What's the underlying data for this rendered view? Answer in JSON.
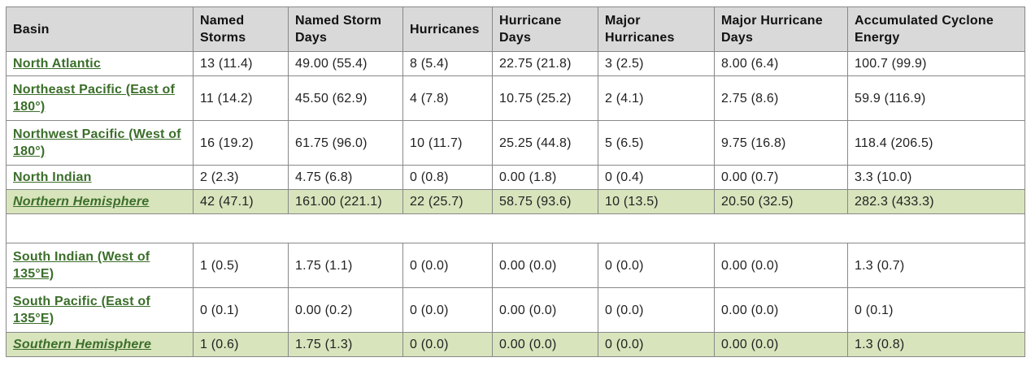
{
  "headers": [
    "Basin",
    "Named Storms",
    "Named Storm Days",
    "Hurricanes",
    "Hurricane Days",
    "Major Hurricanes",
    "Major Hurricane Days",
    "Accumulated Cyclone Energy"
  ],
  "rows": [
    {
      "basin": "North Atlantic",
      "cells": [
        "13 (11.4)",
        "49.00 (55.4)",
        "8 (5.4)",
        "22.75 (21.8)",
        "3 (2.5)",
        "8.00 (6.4)",
        "100.7 (99.9)"
      ]
    },
    {
      "basin": "Northeast Pacific (East of 180°)",
      "cells": [
        "11 (14.2)",
        "45.50 (62.9)",
        "4 (7.8)",
        "10.75 (25.2)",
        "2 (4.1)",
        "2.75 (8.6)",
        "59.9 (116.9)"
      ]
    },
    {
      "basin": "Northwest Pacific (West of 180°)",
      "cells": [
        "16 (19.2)",
        "61.75 (96.0)",
        "10 (11.7)",
        "25.25 (44.8)",
        "5 (6.5)",
        "9.75 (16.8)",
        "118.4 (206.5)"
      ]
    },
    {
      "basin": "North Indian",
      "cells": [
        "2 (2.3)",
        "4.75 (6.8)",
        "0 (0.8)",
        "0.00 (1.8)",
        "0 (0.4)",
        "0.00 (0.7)",
        "3.3 (10.0)"
      ]
    },
    {
      "basin": "Northern Hemisphere",
      "cells": [
        "42 (47.1)",
        "161.00 (221.1)",
        "22 (25.7)",
        "58.75 (93.6)",
        "10 (13.5)",
        "20.50 (32.5)",
        "282.3 (433.3)"
      ]
    },
    {
      "basin": "South Indian (West of 135°E)",
      "cells": [
        "1 (0.5)",
        "1.75 (1.1)",
        "0 (0.0)",
        "0.00 (0.0)",
        "0 (0.0)",
        "0.00 (0.0)",
        "1.3 (0.7)"
      ]
    },
    {
      "basin": "South Pacific (East of 135°E)",
      "cells": [
        "0 (0.1)",
        "0.00 (0.2)",
        "0 (0.0)",
        "0.00 (0.0)",
        "0 (0.0)",
        "0.00 (0.0)",
        "0 (0.1)"
      ]
    },
    {
      "basin": "Southern Hemisphere",
      "cells": [
        "1 (0.6)",
        "1.75 (1.3)",
        "0 (0.0)",
        "0.00 (0.0)",
        "0 (0.0)",
        "0.00 (0.0)",
        "1.3 (0.8)"
      ]
    }
  ],
  "colors": {
    "header_bg": "#d9d9d9",
    "total_row_bg": "#d8e4bc",
    "link": "#3b6e2a",
    "border": "#888888"
  }
}
